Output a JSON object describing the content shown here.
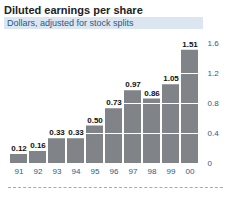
{
  "chart_data": {
    "type": "bar",
    "title": "Diluted earnings per share",
    "subtitle": "Dollars, adjusted for stock splits",
    "categories": [
      "91",
      "92",
      "93",
      "94",
      "95",
      "96",
      "97",
      "98",
      "99",
      "00"
    ],
    "values": [
      0.12,
      0.16,
      0.33,
      0.33,
      0.5,
      0.73,
      0.97,
      0.86,
      1.05,
      1.51
    ],
    "value_labels": [
      "0.12",
      "0.16",
      "0.33",
      "0.33",
      "0.50",
      "0.73",
      "0.97",
      "0.86",
      "1.05",
      "1.51"
    ],
    "data_labels": true,
    "color": "#808387",
    "ylim": [
      0,
      1.6
    ],
    "yticks": [
      0,
      0.4,
      0.8,
      1.2,
      1.6
    ],
    "grid": true
  }
}
